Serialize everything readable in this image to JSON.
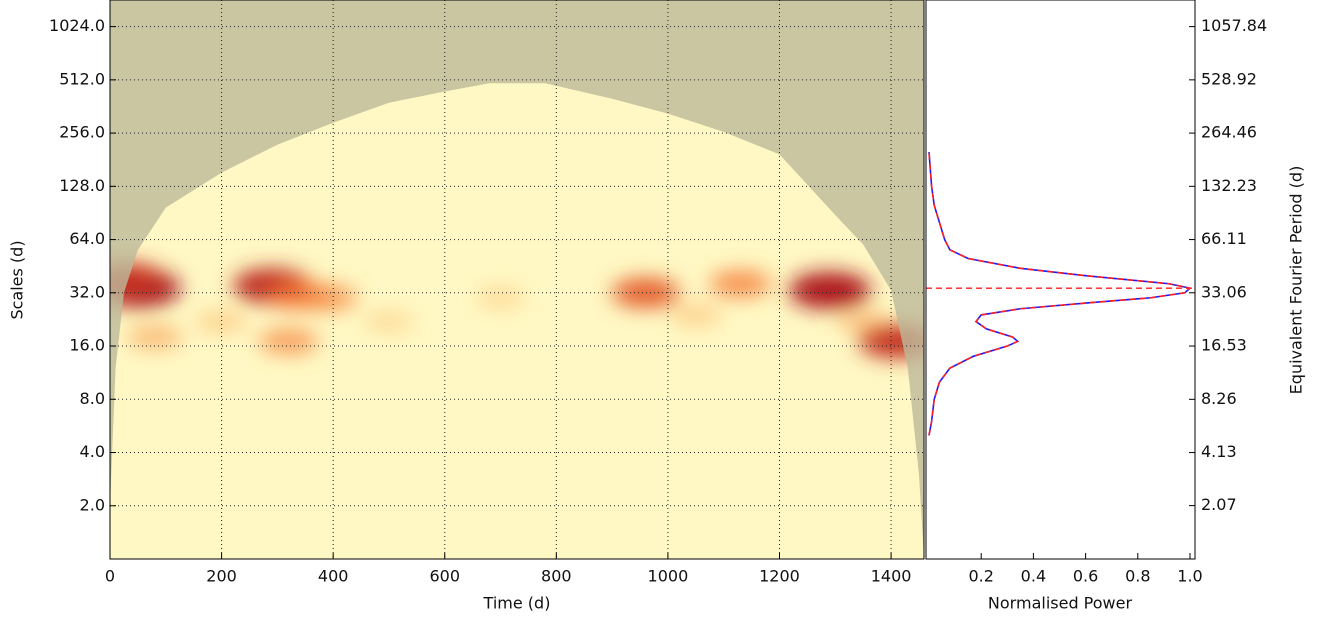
{
  "chart_data": [
    {
      "type": "heatmap",
      "xlabel": "Time (d)",
      "ylabel": "Scales (d)",
      "xlim": [
        0,
        1459
      ],
      "ylim": [
        1,
        1448
      ],
      "log_y": true,
      "grid": true,
      "xticks": [
        0,
        200,
        400,
        600,
        800,
        1000,
        1200,
        1400
      ],
      "yticks": [
        {
          "value": 2,
          "label": "2.0"
        },
        {
          "value": 4,
          "label": "4.0"
        },
        {
          "value": 8,
          "label": "8.0"
        },
        {
          "value": 16,
          "label": "16.0"
        },
        {
          "value": 32,
          "label": "32.0"
        },
        {
          "value": 64,
          "label": "64.0"
        },
        {
          "value": 128,
          "label": "128.0"
        },
        {
          "value": 256,
          "label": "256.0"
        },
        {
          "value": 512,
          "label": "512.0"
        },
        {
          "value": 1024,
          "label": "1024.0"
        }
      ],
      "background": "#fff8c4",
      "x": [
        50,
        30,
        290,
        340,
        390,
        960,
        1130,
        1290,
        1410,
        320,
        80,
        700,
        200,
        1350,
        1050,
        500
      ],
      "y": [
        34,
        38,
        35,
        31,
        30,
        32,
        36,
        33,
        17,
        17,
        18,
        30,
        22,
        22,
        24,
        22
      ],
      "values": [
        1.0,
        0.8,
        0.85,
        0.5,
        0.4,
        0.6,
        0.45,
        0.95,
        0.8,
        0.4,
        0.3,
        0.15,
        0.2,
        0.25,
        0.2,
        0.15
      ],
      "coi": {
        "color": "#bdb99a",
        "x": [
          0,
          10,
          25,
          50,
          100,
          200,
          300,
          400,
          500,
          600,
          680,
          780,
          900,
          1000,
          1100,
          1200,
          1300,
          1350,
          1400,
          1430,
          1450,
          1459
        ],
        "y": [
          2,
          12,
          32,
          56,
          97,
          153,
          220,
          293,
          380,
          440,
          490,
          490,
          400,
          330,
          260,
          194,
          88,
          60,
          33,
          12,
          3,
          1
        ]
      }
    },
    {
      "type": "line",
      "xlabel": "Normalised Power",
      "y2label": "Equivalent Fourier Period (d)",
      "xlim": [
        0,
        1
      ],
      "xticks": [
        0.2,
        0.4,
        0.6,
        0.8,
        {
          "value": 1,
          "label": "1.0"
        }
      ],
      "ylim": [
        1,
        1448
      ],
      "log_y": true,
      "y2lim": [
        1.033,
        1495.9
      ],
      "y2ticks": [
        2.07,
        4.13,
        8.26,
        16.53,
        33.06,
        66.11,
        132.23,
        264.46,
        528.92,
        1057.84
      ],
      "series": [
        {
          "color": "#1a1aff",
          "y": [
            5,
            6,
            8,
            10,
            12,
            14,
            16,
            17,
            18,
            20,
            22,
            24,
            26,
            28,
            30,
            32,
            34,
            36,
            40,
            44,
            50,
            56,
            64,
            80,
            100,
            128,
            200
          ],
          "values": [
            0,
            0.01,
            0.02,
            0.04,
            0.08,
            0.17,
            0.3,
            0.34,
            0.32,
            0.22,
            0.18,
            0.2,
            0.35,
            0.6,
            0.85,
            0.98,
            1.0,
            0.92,
            0.6,
            0.35,
            0.15,
            0.08,
            0.06,
            0.04,
            0.02,
            0.01,
            0
          ]
        },
        {
          "color": "#ff2020",
          "dashed": true,
          "y": [
            5,
            6,
            8,
            10,
            12,
            14,
            16,
            17,
            18,
            20,
            22,
            24,
            26,
            28,
            30,
            32,
            34,
            36,
            40,
            44,
            50,
            56,
            64,
            80,
            100,
            128,
            200
          ],
          "values": [
            0,
            0.01,
            0.02,
            0.04,
            0.08,
            0.17,
            0.3,
            0.34,
            0.32,
            0.22,
            0.18,
            0.2,
            0.35,
            0.6,
            0.85,
            0.98,
            1.0,
            0.92,
            0.6,
            0.35,
            0.15,
            0.08,
            0.06,
            0.04,
            0.02,
            0.01,
            0
          ]
        }
      ],
      "hline": {
        "value": 34,
        "color": "#ff2020"
      }
    }
  ]
}
